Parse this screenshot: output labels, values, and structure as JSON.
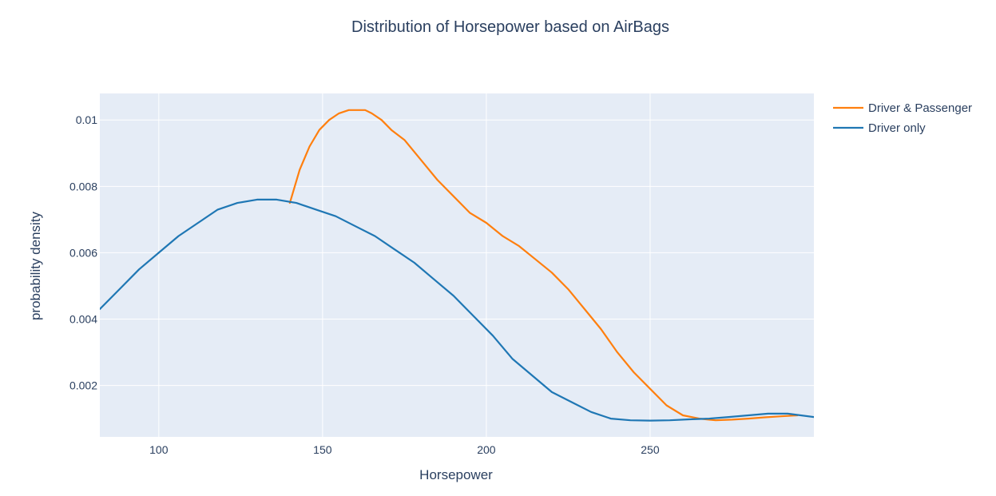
{
  "chart_data": {
    "type": "line",
    "title": "Distribution of Horsepower based on AirBags",
    "xlabel": "Horsepower",
    "ylabel": "probability density",
    "xlim": [
      82,
      300
    ],
    "ylim": [
      0.00045,
      0.0108
    ],
    "x_ticks": [
      {
        "value": 100,
        "label": "100"
      },
      {
        "value": 150,
        "label": "150"
      },
      {
        "value": 200,
        "label": "200"
      },
      {
        "value": 250,
        "label": "250"
      }
    ],
    "y_ticks": [
      {
        "value": 0.002,
        "label": "0.002"
      },
      {
        "value": 0.004,
        "label": "0.004"
      },
      {
        "value": 0.006,
        "label": "0.006"
      },
      {
        "value": 0.008,
        "label": "0.008"
      },
      {
        "value": 0.01,
        "label": "0.01"
      }
    ],
    "grid": true,
    "legend_position": "top-right",
    "plot_background": "#e5ecf6",
    "series": [
      {
        "name": "Driver & Passenger",
        "color": "#ff7f0e",
        "x": [
          140,
          143,
          146,
          149,
          152,
          155,
          158,
          161,
          163,
          165,
          168,
          171,
          175,
          180,
          185,
          190,
          195,
          200,
          205,
          210,
          215,
          220,
          225,
          230,
          235,
          240,
          245,
          250,
          255,
          260,
          265,
          270,
          275,
          280,
          285,
          290,
          295
        ],
        "y": [
          0.0075,
          0.0085,
          0.0092,
          0.0097,
          0.01,
          0.0102,
          0.0103,
          0.0103,
          0.0103,
          0.0102,
          0.01,
          0.0097,
          0.0094,
          0.0088,
          0.0082,
          0.0077,
          0.0072,
          0.0069,
          0.0065,
          0.0062,
          0.0058,
          0.0054,
          0.0049,
          0.0043,
          0.0037,
          0.003,
          0.0024,
          0.0019,
          0.0014,
          0.0011,
          0.001,
          0.00095,
          0.00097,
          0.001,
          0.00104,
          0.00107,
          0.0011
        ]
      },
      {
        "name": "Driver only",
        "color": "#1f77b4",
        "x": [
          82,
          88,
          94,
          100,
          106,
          112,
          118,
          124,
          130,
          136,
          142,
          148,
          154,
          160,
          166,
          172,
          178,
          184,
          190,
          196,
          202,
          208,
          214,
          220,
          226,
          232,
          238,
          244,
          250,
          256,
          262,
          268,
          274,
          280,
          286,
          292,
          300
        ],
        "y": [
          0.0043,
          0.0049,
          0.0055,
          0.006,
          0.0065,
          0.0069,
          0.0073,
          0.0075,
          0.0076,
          0.0076,
          0.0075,
          0.0073,
          0.0071,
          0.0068,
          0.0065,
          0.0061,
          0.0057,
          0.0052,
          0.0047,
          0.0041,
          0.0035,
          0.0028,
          0.0023,
          0.0018,
          0.0015,
          0.0012,
          0.001,
          0.00095,
          0.00094,
          0.00095,
          0.00098,
          0.001,
          0.00105,
          0.0011,
          0.00115,
          0.00115,
          0.00105
        ]
      }
    ]
  }
}
